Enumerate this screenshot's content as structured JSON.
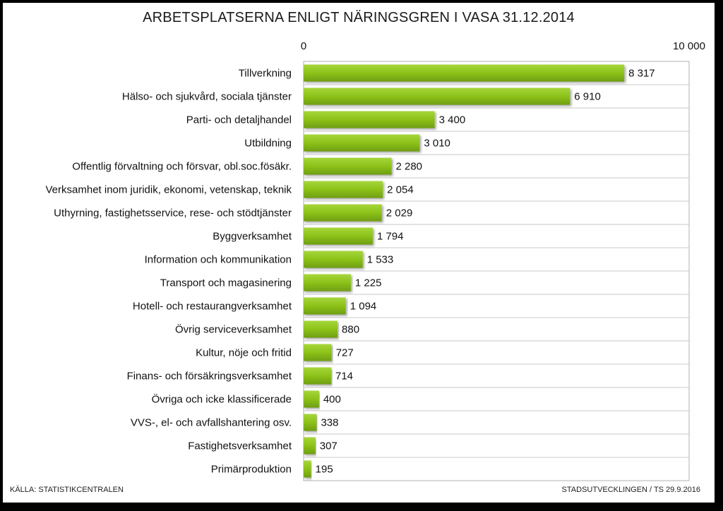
{
  "chart_data": {
    "type": "bar",
    "orientation": "horizontal",
    "title": "ARBETSPLATSERNA ENLIGT NÄRINGSGREN I VASA 31.12.2014",
    "categories": [
      "Tillverkning",
      "Hälso- och sjukvård, sociala tjänster",
      "Parti- och detaljhandel",
      "Utbildning",
      "Offentlig förvaltning och försvar, obl.soc.fösäkr.",
      "Verksamhet inom juridik, ekonomi, vetenskap, teknik",
      "Uthyrning, fastighetsservice, rese- och stödtjänster",
      "Byggverksamhet",
      "Information och kommunikation",
      "Transport och magasinering",
      "Hotell- och restaurangverksamhet",
      "Övrig serviceverksamhet",
      "Kultur, nöje och fritid",
      "Finans- och försäkringsverksamhet",
      "Övriga och icke klassificerade",
      "VVS-, el- och avfallshantering osv.",
      "Fastighetsverksamhet",
      "Primärproduktion"
    ],
    "values": [
      8317,
      6910,
      3400,
      3010,
      2280,
      2054,
      2029,
      1794,
      1533,
      1225,
      1094,
      880,
      727,
      714,
      400,
      338,
      307,
      195
    ],
    "value_labels": [
      "8 317",
      "6 910",
      "3 400",
      "3 010",
      "2 280",
      "2 054",
      "2 029",
      "1 794",
      "1 533",
      "1 225",
      "1 094",
      "880",
      "727",
      "714",
      "400",
      "338",
      "307",
      "195"
    ],
    "xlim": [
      0,
      10000
    ],
    "tick_labels": [
      "0",
      "10 000"
    ],
    "xlabel": "",
    "ylabel": "",
    "grid": true,
    "bar_color": "#8cc21a"
  },
  "footer": {
    "source": "KÄLLA: STATISTIKCENTRALEN",
    "credit": "STADSUTVECKLINGEN / TS 29.9.2016"
  }
}
